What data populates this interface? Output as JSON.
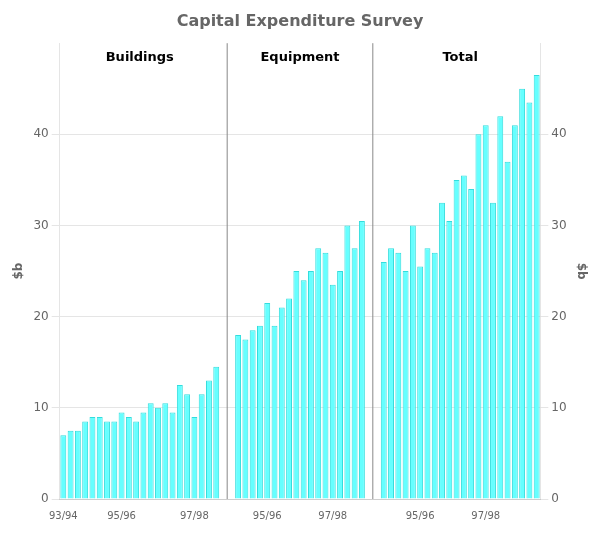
{
  "chart_data": {
    "type": "bar",
    "title": "Capital Expenditure Survey",
    "ylabel": "$b",
    "y2label": "$b",
    "categories": [
      "93/94",
      null,
      null,
      null,
      null,
      null,
      null,
      null,
      "95/96",
      null,
      null,
      null,
      null,
      null,
      null,
      null,
      null,
      null,
      "97/98",
      null,
      null,
      null,
      null,
      null,
      null,
      null,
      null,
      null,
      "95/96",
      null,
      null,
      null,
      null,
      null,
      null,
      null,
      null,
      "97/98",
      null,
      null,
      null,
      null,
      null,
      null,
      null,
      null,
      null,
      null,
      null,
      "95/96",
      null,
      null,
      null,
      null,
      null,
      null,
      null,
      null,
      "97/98",
      null,
      null,
      null,
      null,
      null,
      null,
      null
    ],
    "series": [
      {
        "name": "Buildings",
        "color": "#66ffff",
        "values": [
          7.0,
          7.5,
          7.5,
          8.5,
          9.0,
          9.0,
          8.5,
          8.5,
          9.5,
          9.0,
          8.5,
          9.5,
          10.5,
          10.0,
          10.5,
          9.5,
          12.5,
          11.5,
          9.0,
          11.5,
          13.0,
          14.5,
          null,
          null,
          null,
          null,
          null,
          null,
          null,
          null,
          null,
          null,
          null,
          null,
          null,
          null,
          null,
          null,
          null,
          null,
          null,
          null,
          null,
          null,
          null,
          null,
          null,
          null,
          null,
          null,
          null,
          null,
          null,
          null,
          null,
          null,
          null,
          null,
          null,
          null,
          null,
          null,
          null,
          null,
          null,
          null
        ]
      },
      {
        "name": "Equipment",
        "color": "#66ffff",
        "values": [
          null,
          null,
          null,
          null,
          null,
          null,
          null,
          null,
          null,
          null,
          null,
          null,
          null,
          null,
          null,
          null,
          null,
          null,
          null,
          null,
          null,
          null,
          null,
          null,
          18.0,
          17.5,
          18.5,
          19.0,
          21.5,
          19.0,
          21.0,
          22.0,
          25.0,
          24.0,
          25.0,
          27.5,
          27.0,
          23.5,
          25.0,
          30.0,
          27.5,
          30.5,
          null,
          null,
          null,
          null,
          null,
          null,
          null,
          null,
          null,
          null,
          null,
          null,
          null,
          null,
          null,
          null,
          null,
          null,
          null,
          null,
          null,
          null,
          null,
          null
        ]
      },
      {
        "name": "Total",
        "color": "#66ffff",
        "values": [
          null,
          null,
          null,
          null,
          null,
          null,
          null,
          null,
          null,
          null,
          null,
          null,
          null,
          null,
          null,
          null,
          null,
          null,
          null,
          null,
          null,
          null,
          null,
          null,
          null,
          null,
          null,
          null,
          null,
          null,
          null,
          null,
          null,
          null,
          null,
          null,
          null,
          null,
          null,
          null,
          null,
          null,
          null,
          null,
          26.0,
          27.5,
          27.0,
          25.0,
          30.0,
          25.5,
          27.5,
          27.0,
          32.5,
          30.5,
          35.0,
          35.5,
          34.0,
          40.0,
          41.0,
          32.5,
          42.0,
          37.0,
          41.0,
          45.0,
          43.5,
          46.5
        ]
      }
    ],
    "ylim": [
      0,
      50
    ],
    "yticks": [
      0,
      10,
      20,
      30,
      40
    ],
    "y2lim": [
      0,
      50
    ],
    "y2ticks": [
      0,
      10,
      20,
      30,
      40
    ],
    "grid": true
  }
}
